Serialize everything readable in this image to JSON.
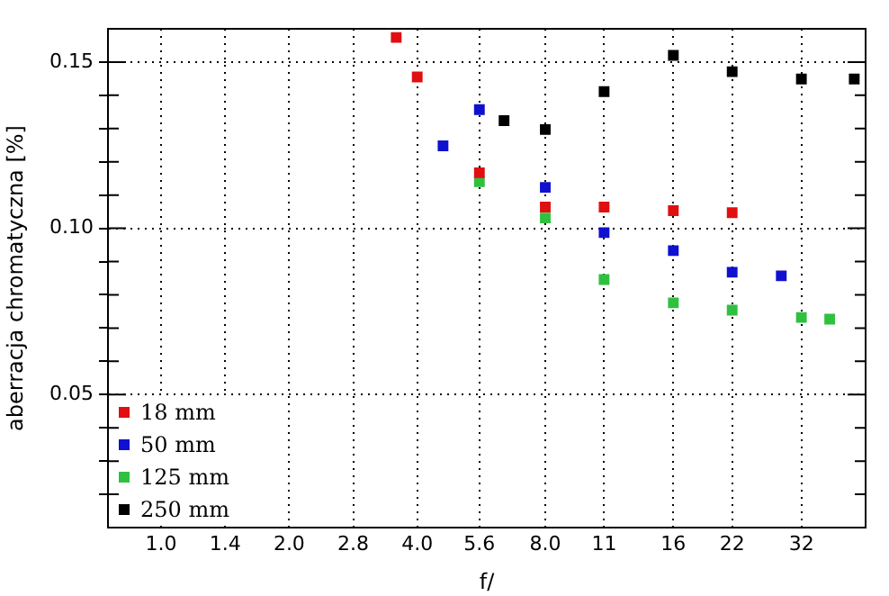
{
  "chart_data": {
    "type": "scatter",
    "xlabel": "f/",
    "ylabel": "aberracja chromatyczna [%]",
    "log": "x",
    "marker": "square",
    "grid": true,
    "legend": "bottom left",
    "xlim": [
      0.75,
      45.3
    ],
    "xticks": [
      {
        "value": 1,
        "label": "1.0"
      },
      {
        "value": 1.414,
        "label": "1.4"
      },
      {
        "value": 2,
        "label": "2.0"
      },
      {
        "value": 2.828,
        "label": "2.8"
      },
      {
        "value": 4,
        "label": "4.0"
      },
      {
        "value": 5.6,
        "label": "5.6"
      },
      {
        "value": 8,
        "label": "8.0"
      },
      11,
      16,
      22,
      {
        "value": 32,
        "label": "32"
      }
    ],
    "ylim": [
      0.01,
      0.16
    ],
    "yticks": [
      {
        "value": 0.02,
        "label": null
      },
      {
        "value": 0.03,
        "label": null
      },
      {
        "value": 0.04,
        "label": null
      },
      {
        "value": 0.05,
        "label": "0.05"
      },
      {
        "value": 0.06,
        "label": null
      },
      {
        "value": 0.07,
        "label": null
      },
      {
        "value": 0.08,
        "label": null
      },
      {
        "value": 0.09,
        "label": null
      },
      {
        "value": 0.1,
        "label": "0.10"
      },
      {
        "value": 0.11,
        "label": null
      },
      {
        "value": 0.12,
        "label": null
      },
      {
        "value": 0.13,
        "label": null
      },
      {
        "value": 0.14,
        "label": null
      },
      {
        "value": 0.15,
        "label": "0.15"
      }
    ],
    "series": [
      {
        "name": "18 mm",
        "color": "#e01010",
        "x": [
          3.57,
          4,
          5.6,
          8,
          11,
          16,
          22
        ],
        "values": [
          0.1574,
          0.1455,
          0.1167,
          0.1064,
          0.1064,
          0.1053,
          0.1047
        ]
      },
      {
        "name": "50 mm",
        "color": "#1010d0",
        "x": [
          4.6,
          5.6,
          8,
          11,
          16,
          22,
          28.7
        ],
        "values": [
          0.1248,
          0.1357,
          0.1123,
          0.0987,
          0.0933,
          0.0868,
          0.0857
        ]
      },
      {
        "name": "125 mm",
        "color": "#30c040",
        "x": [
          5.6,
          8,
          11,
          16,
          22,
          32,
          37.3
        ],
        "values": [
          0.114,
          0.1031,
          0.0846,
          0.0776,
          0.0754,
          0.0732,
          0.0727
        ]
      },
      {
        "name": "250 mm",
        "color": "#000000",
        "x": [
          6.4,
          8,
          11,
          16,
          22,
          32,
          42.6
        ],
        "values": [
          0.1324,
          0.1297,
          0.1411,
          0.152,
          0.1471,
          0.1449,
          0.1449
        ]
      }
    ]
  }
}
